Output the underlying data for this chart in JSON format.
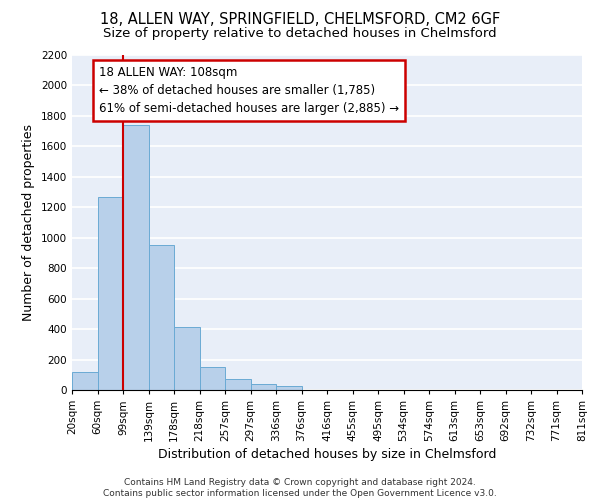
{
  "title_line1": "18, ALLEN WAY, SPRINGFIELD, CHELMSFORD, CM2 6GF",
  "title_line2": "Size of property relative to detached houses in Chelmsford",
  "xlabel": "Distribution of detached houses by size in Chelmsford",
  "ylabel": "Number of detached properties",
  "footnote": "Contains HM Land Registry data © Crown copyright and database right 2024.\nContains public sector information licensed under the Open Government Licence v3.0.",
  "bin_labels": [
    "20sqm",
    "60sqm",
    "99sqm",
    "139sqm",
    "178sqm",
    "218sqm",
    "257sqm",
    "297sqm",
    "336sqm",
    "376sqm",
    "416sqm",
    "455sqm",
    "495sqm",
    "534sqm",
    "574sqm",
    "613sqm",
    "653sqm",
    "692sqm",
    "732sqm",
    "771sqm",
    "811sqm"
  ],
  "bar_values": [
    115,
    1270,
    1740,
    950,
    415,
    150,
    75,
    42,
    25,
    0,
    0,
    0,
    0,
    0,
    0,
    0,
    0,
    0,
    0,
    0
  ],
  "bar_color": "#b8d0ea",
  "bar_edge_color": "#6aaad4",
  "red_line_x": 2.0,
  "annotation_text": "18 ALLEN WAY: 108sqm\n← 38% of detached houses are smaller (1,785)\n61% of semi-detached houses are larger (2,885) →",
  "annotation_box_color": "white",
  "annotation_box_edge_color": "#cc0000",
  "red_line_color": "#cc0000",
  "ylim": [
    0,
    2200
  ],
  "yticks": [
    0,
    200,
    400,
    600,
    800,
    1000,
    1200,
    1400,
    1600,
    1800,
    2000,
    2200
  ],
  "background_color": "#e8eef8",
  "grid_color": "white",
  "title_fontsize": 10.5,
  "subtitle_fontsize": 9.5,
  "axis_label_fontsize": 9,
  "tick_fontsize": 7.5,
  "annot_fontsize": 8.5
}
